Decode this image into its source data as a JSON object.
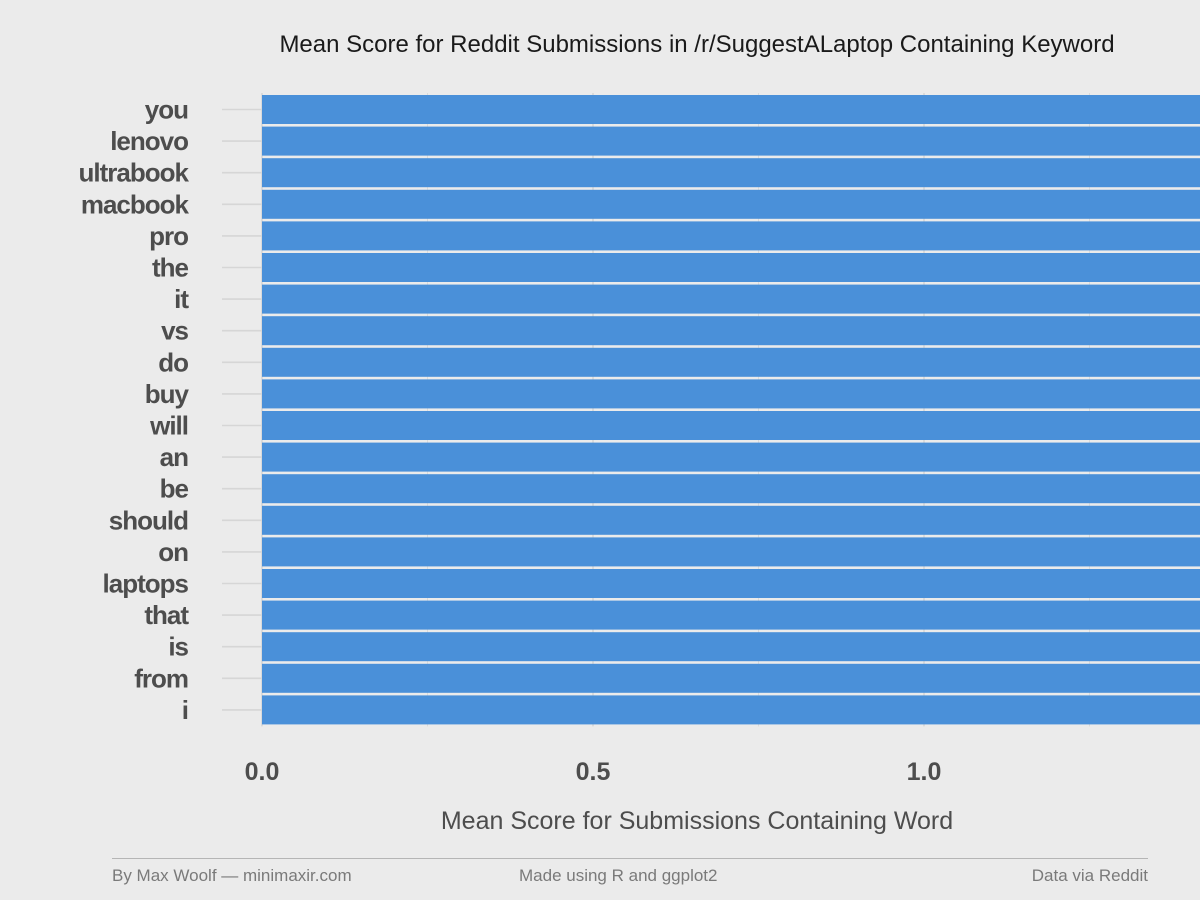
{
  "chart_data": {
    "type": "bar",
    "orientation": "horizontal",
    "title": "Mean Score for Reddit Submissions in /r/SuggestALaptop Containing Keyword",
    "xlabel": "Mean Score for Submissions Containing Word",
    "ylabel": "",
    "categories": [
      "you",
      "lenovo",
      "ultrabook",
      "macbook",
      "pro",
      "the",
      "it",
      "vs",
      "do",
      "buy",
      "will",
      "an",
      "be",
      "should",
      "on",
      "laptops",
      "that",
      "is",
      "from",
      "i"
    ],
    "values": [
      2.63,
      2.59,
      2.58,
      2.4,
      2.39,
      2.37,
      2.33,
      2.28,
      2.28,
      2.27,
      2.27,
      2.27,
      2.26,
      2.25,
      2.25,
      2.24,
      2.23,
      2.22,
      2.22,
      2.21
    ],
    "data_labels": [
      "2.6",
      "2.6",
      "2.6",
      "2.4",
      "2.4",
      "2.4",
      "2.3",
      "2.3",
      "2.3",
      "2.3",
      "2.3",
      "2.3",
      "2.3",
      "2.2",
      "2.2",
      "2.2",
      "2.2",
      "2.2",
      "2.2",
      "2.2"
    ],
    "xlim": [
      0,
      2.75
    ],
    "xticks": [
      "0.0",
      "0.5",
      "1.0",
      "1.5",
      "2.0",
      "2.5"
    ],
    "reference_line": 2.0,
    "grid": true,
    "colors": {
      "bar": "#4a90d9",
      "background": "#ebebeb",
      "grid": "#d6d6d6",
      "reference_line": "#111111",
      "label_text": "#ffffff",
      "axis_text": "#4d4d4d"
    }
  },
  "footer": {
    "left": "By Max Woolf — minimaxir.com",
    "center": "Made using R and ggplot2",
    "right": "Data via Reddit"
  }
}
